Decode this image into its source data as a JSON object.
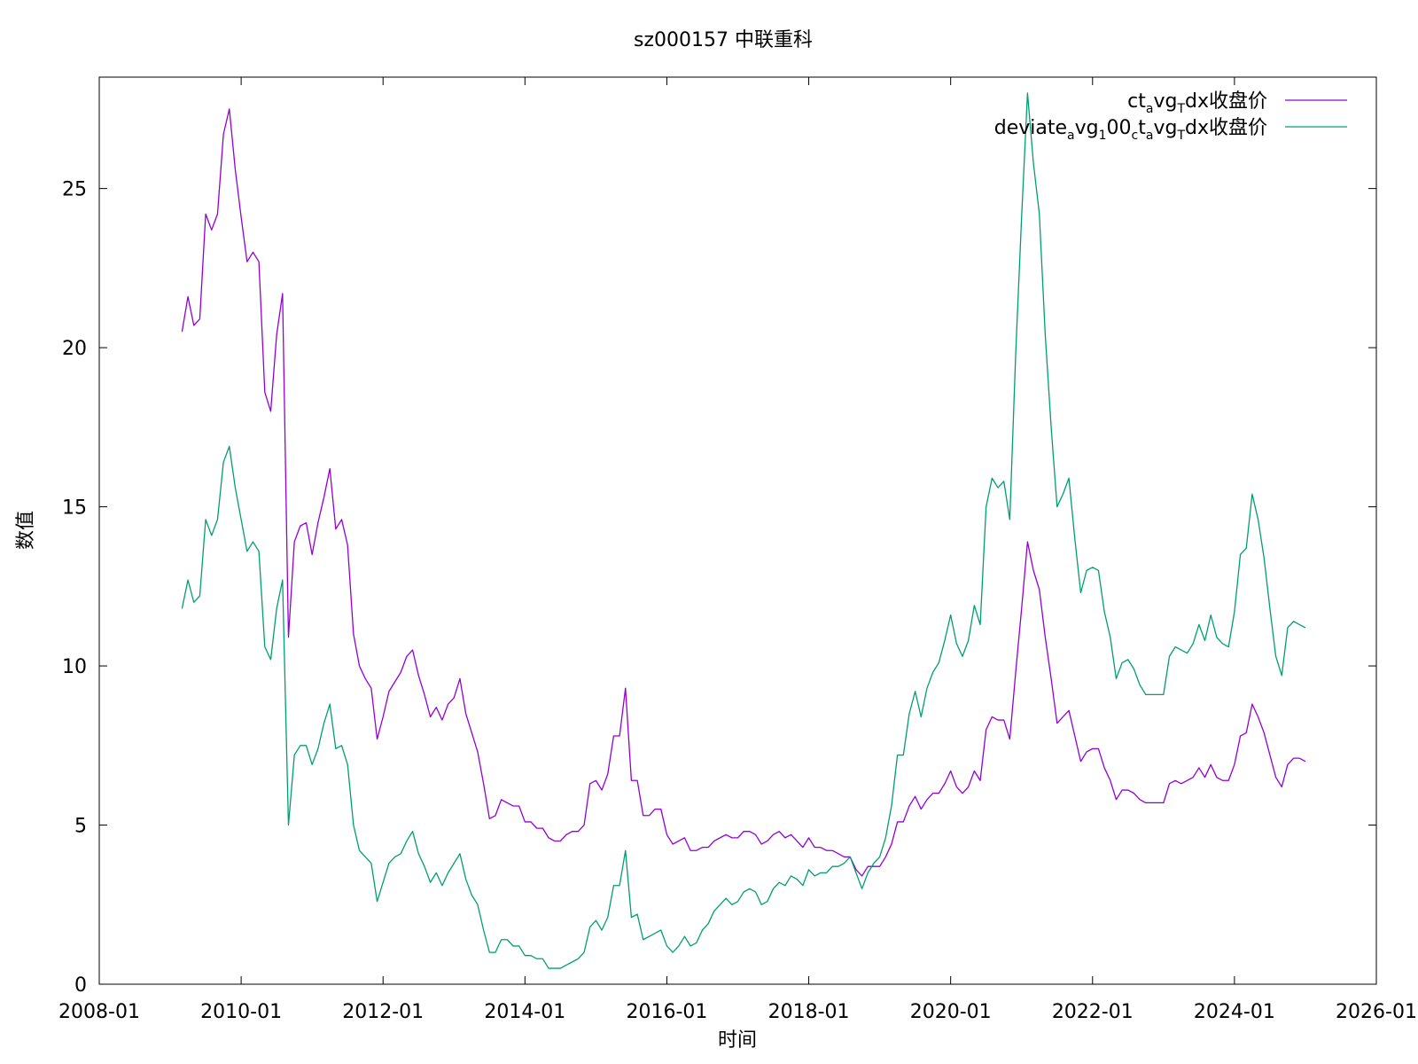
{
  "chart_data": {
    "type": "line",
    "title": "sz000157 中联重科",
    "xlabel": "时间",
    "ylabel": "数值",
    "xlim": [
      "2008-01",
      "2026-01"
    ],
    "ylim": [
      0,
      28.5
    ],
    "x_ticks": [
      "2008-01",
      "2010-01",
      "2012-01",
      "2014-01",
      "2016-01",
      "2018-01",
      "2020-01",
      "2022-01",
      "2024-01",
      "2026-01"
    ],
    "y_ticks": [
      0,
      5,
      10,
      15,
      20,
      25
    ],
    "legend_position": "top-right",
    "grid": false,
    "legend": [
      {
        "parts": [
          {
            "t": "ct"
          },
          {
            "t": "a",
            "sub": true
          },
          {
            "t": "vg"
          },
          {
            "t": "T",
            "sub": true
          },
          {
            "t": "dx收盘价"
          }
        ]
      },
      {
        "parts": [
          {
            "t": "deviate"
          },
          {
            "t": "a",
            "sub": true
          },
          {
            "t": "vg"
          },
          {
            "t": "1",
            "sub": true
          },
          {
            "t": "00"
          },
          {
            "t": "c",
            "sub": true
          },
          {
            "t": "t"
          },
          {
            "t": "a",
            "sub": true
          },
          {
            "t": "vg"
          },
          {
            "t": "T",
            "sub": true
          },
          {
            "t": "dx收盘价"
          }
        ]
      }
    ],
    "series": [
      {
        "color": "#9400d3",
        "start": "2009-03",
        "values": [
          20.5,
          21.6,
          20.7,
          20.9,
          24.2,
          23.7,
          24.2,
          26.7,
          27.5,
          25.6,
          24.1,
          22.7,
          23.0,
          22.7,
          18.6,
          18.0,
          20.4,
          21.7,
          10.9,
          13.9,
          14.4,
          14.5,
          13.5,
          14.5,
          15.3,
          16.2,
          14.3,
          14.6,
          13.8,
          11.0,
          10.0,
          9.6,
          9.3,
          7.7,
          8.4,
          9.2,
          9.5,
          9.8,
          10.3,
          10.5,
          9.7,
          9.1,
          8.4,
          8.7,
          8.3,
          8.8,
          9.0,
          9.6,
          8.5,
          7.9,
          7.3,
          6.3,
          5.2,
          5.3,
          5.8,
          5.7,
          5.6,
          5.6,
          5.1,
          5.1,
          4.9,
          4.9,
          4.6,
          4.5,
          4.5,
          4.7,
          4.8,
          4.8,
          5.0,
          6.3,
          6.4,
          6.1,
          6.6,
          7.8,
          7.8,
          9.3,
          6.4,
          6.4,
          5.3,
          5.3,
          5.5,
          5.5,
          4.7,
          4.4,
          4.5,
          4.6,
          4.2,
          4.2,
          4.3,
          4.3,
          4.5,
          4.6,
          4.7,
          4.6,
          4.6,
          4.8,
          4.8,
          4.7,
          4.4,
          4.5,
          4.7,
          4.8,
          4.6,
          4.7,
          4.5,
          4.3,
          4.6,
          4.3,
          4.3,
          4.2,
          4.2,
          4.1,
          4.0,
          4.0,
          3.6,
          3.4,
          3.7,
          3.7,
          3.7,
          4.0,
          4.4,
          5.1,
          5.1,
          5.6,
          5.9,
          5.5,
          5.8,
          6.0,
          6.0,
          6.3,
          6.7,
          6.2,
          6.0,
          6.2,
          6.7,
          6.4,
          8.0,
          8.4,
          8.3,
          8.3,
          7.7,
          9.8,
          11.8,
          13.9,
          13.0,
          12.4,
          10.9,
          9.6,
          8.2,
          8.4,
          8.6,
          7.8,
          7.0,
          7.3,
          7.4,
          7.4,
          6.8,
          6.4,
          5.8,
          6.1,
          6.1,
          6.0,
          5.8,
          5.7,
          5.7,
          5.7,
          5.7,
          6.3,
          6.4,
          6.3,
          6.4,
          6.5,
          6.8,
          6.5,
          6.9,
          6.5,
          6.4,
          6.4,
          6.9,
          7.8,
          7.9,
          8.8,
          8.4,
          7.9,
          7.2,
          6.5,
          6.2,
          6.9,
          7.1,
          7.1,
          7.0
        ]
      },
      {
        "color": "#009e73",
        "start": "2009-03",
        "values": [
          11.8,
          12.7,
          12.0,
          12.2,
          14.6,
          14.1,
          14.6,
          16.4,
          16.9,
          15.6,
          14.6,
          13.6,
          13.9,
          13.6,
          10.6,
          10.2,
          11.8,
          12.7,
          5.0,
          7.2,
          7.5,
          7.5,
          6.9,
          7.4,
          8.2,
          8.8,
          7.4,
          7.5,
          6.9,
          5.0,
          4.2,
          4.0,
          3.8,
          2.6,
          3.2,
          3.8,
          4.0,
          4.1,
          4.5,
          4.8,
          4.1,
          3.7,
          3.2,
          3.5,
          3.1,
          3.5,
          3.8,
          4.1,
          3.3,
          2.8,
          2.5,
          1.7,
          1.0,
          1.0,
          1.4,
          1.4,
          1.2,
          1.2,
          0.9,
          0.9,
          0.8,
          0.8,
          0.5,
          0.5,
          0.5,
          0.6,
          0.7,
          0.8,
          1.0,
          1.8,
          2.0,
          1.7,
          2.1,
          3.1,
          3.1,
          4.2,
          2.1,
          2.2,
          1.4,
          1.5,
          1.6,
          1.7,
          1.2,
          1.0,
          1.2,
          1.5,
          1.2,
          1.3,
          1.7,
          1.9,
          2.3,
          2.5,
          2.7,
          2.5,
          2.6,
          2.9,
          3.0,
          2.9,
          2.5,
          2.6,
          3.0,
          3.2,
          3.1,
          3.4,
          3.3,
          3.1,
          3.6,
          3.4,
          3.5,
          3.5,
          3.7,
          3.7,
          3.8,
          4.0,
          3.5,
          3.0,
          3.5,
          3.8,
          4.0,
          4.6,
          5.6,
          7.2,
          7.2,
          8.5,
          9.2,
          8.4,
          9.3,
          9.8,
          10.1,
          10.8,
          11.6,
          10.7,
          10.3,
          10.8,
          11.9,
          11.3,
          15.0,
          15.9,
          15.6,
          15.8,
          14.6,
          19.8,
          24.1,
          28.0,
          25.8,
          24.2,
          20.4,
          17.5,
          15.0,
          15.4,
          15.9,
          14.0,
          12.3,
          13.0,
          13.1,
          13.0,
          11.7,
          10.9,
          9.6,
          10.1,
          10.2,
          9.9,
          9.4,
          9.1,
          9.1,
          9.1,
          9.1,
          10.3,
          10.6,
          10.5,
          10.4,
          10.7,
          11.3,
          10.8,
          11.6,
          10.9,
          10.7,
          10.6,
          11.7,
          13.5,
          13.7,
          15.4,
          14.6,
          13.4,
          11.8,
          10.3,
          9.7,
          11.2,
          11.4,
          11.3,
          11.2
        ]
      }
    ]
  }
}
